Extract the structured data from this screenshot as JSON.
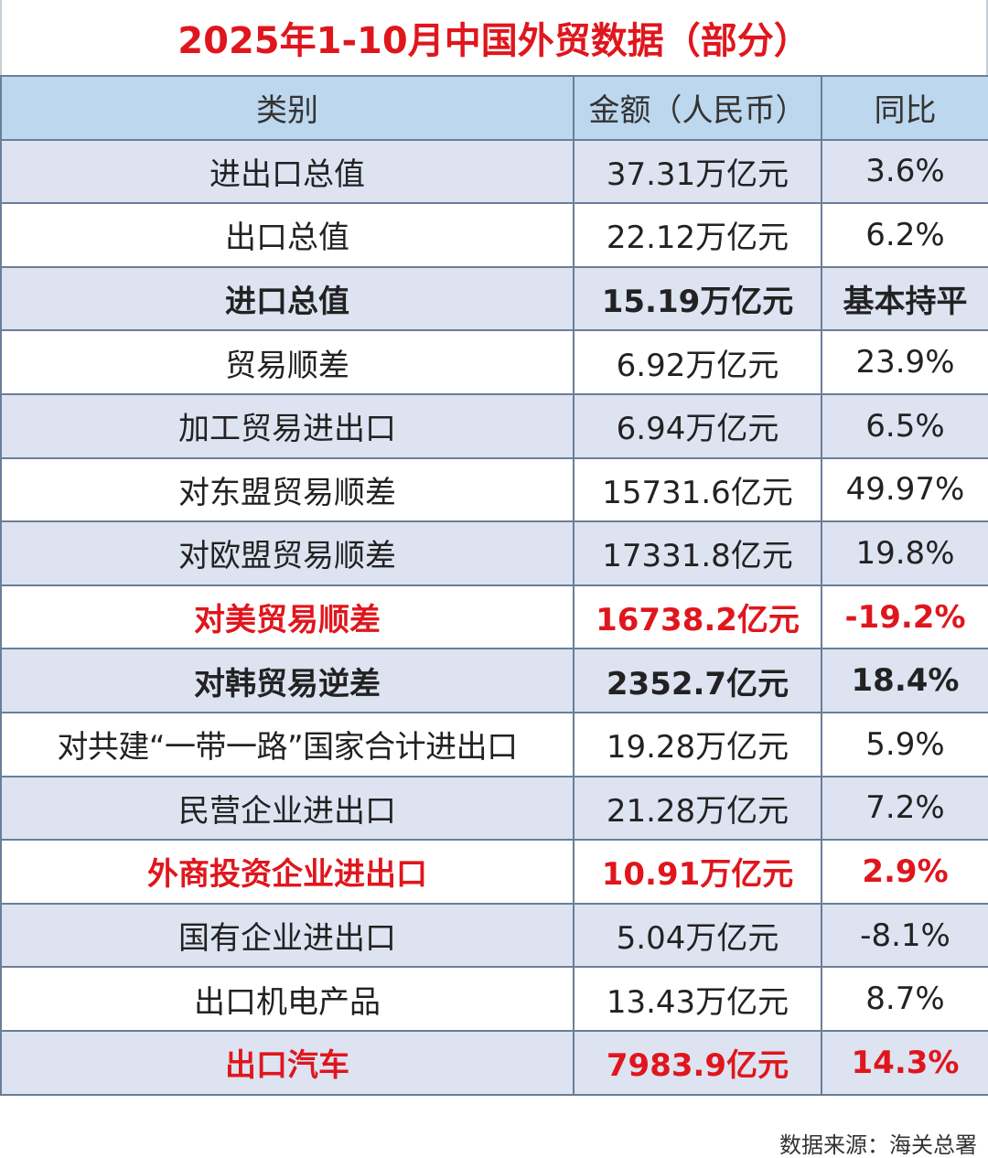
{
  "title": "2025年1-10月中国外贸数据（部分）",
  "headers": {
    "category": "类别",
    "amount": "金额（人民币）",
    "yoy": "同比"
  },
  "rows": [
    {
      "category": "进出口总值",
      "amount": "37.31万亿元",
      "yoy": "3.6%"
    },
    {
      "category": "出口总值",
      "amount": "22.12万亿元",
      "yoy": "6.2%"
    },
    {
      "category": "进口总值",
      "amount": "15.19万亿元",
      "yoy": "基本持平"
    },
    {
      "category": "贸易顺差",
      "amount": "6.92万亿元",
      "yoy": "23.9%"
    },
    {
      "category": "加工贸易进出口",
      "amount": "6.94万亿元",
      "yoy": "6.5%"
    },
    {
      "category": "对东盟贸易顺差",
      "amount": "15731.6亿元",
      "yoy": "49.97%"
    },
    {
      "category": "对欧盟贸易顺差",
      "amount": "17331.8亿元",
      "yoy": "19.8%"
    },
    {
      "category": "对美贸易顺差",
      "amount": "16738.2亿元",
      "yoy": "-19.2%"
    },
    {
      "category": "对韩贸易逆差",
      "amount": "2352.7亿元",
      "yoy": "18.4%"
    },
    {
      "category": "对共建“一带一路”国家合计进出口",
      "amount": "19.28万亿元",
      "yoy": "5.9%"
    },
    {
      "category": "民营企业进出口",
      "amount": "21.28万亿元",
      "yoy": "7.2%"
    },
    {
      "category": "外商投资企业进出口",
      "amount": "10.91万亿元",
      "yoy": "2.9%"
    },
    {
      "category": "国有企业进出口",
      "amount": "5.04万亿元",
      "yoy": "-8.1%"
    },
    {
      "category": "出口机电产品",
      "amount": "13.43万亿元",
      "yoy": "8.7%"
    },
    {
      "category": "出口汽车",
      "amount": "7983.9亿元",
      "yoy": "14.3%"
    }
  ],
  "colors": {
    "highlight_red": "#e0161d",
    "header_bg": "#bdd7ee",
    "shaded_row_bg": "#dde3f1",
    "border": "#6b7e98"
  },
  "source": "数据来源：海关总署"
}
